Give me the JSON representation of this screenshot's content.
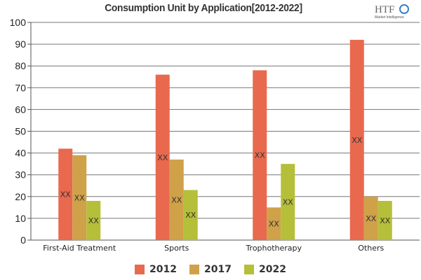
{
  "chart_data": {
    "type": "bar",
    "title": "Consumption Unit by  Application[2012-2022]",
    "categories": [
      "First-Aid Treatment",
      "Sports",
      "Trophotherapy",
      "Others"
    ],
    "series": [
      {
        "name": "2012",
        "color": "#e8694e",
        "values": [
          42,
          76,
          78,
          92
        ],
        "data_labels": [
          "XX",
          "XX",
          "XX",
          "XX"
        ]
      },
      {
        "name": "2017",
        "color": "#cfa149",
        "values": [
          39,
          37,
          15,
          20
        ],
        "data_labels": [
          "XX",
          "XX",
          "XX",
          "XX"
        ]
      },
      {
        "name": "2022",
        "color": "#b5bf39",
        "values": [
          18,
          23,
          35,
          18
        ],
        "data_labels": [
          "XX",
          "XX",
          "XX",
          "XX"
        ]
      }
    ],
    "xlabel": "",
    "ylabel": "",
    "ylim": [
      0,
      100
    ],
    "yticks": [
      "0",
      "10",
      "20",
      "30",
      "40",
      "50",
      "60",
      "70",
      "80",
      "90",
      "100"
    ],
    "grid": true,
    "legend": "bottom"
  },
  "logo": {
    "text": "HTF",
    "subtext": "Market Intelligence"
  }
}
